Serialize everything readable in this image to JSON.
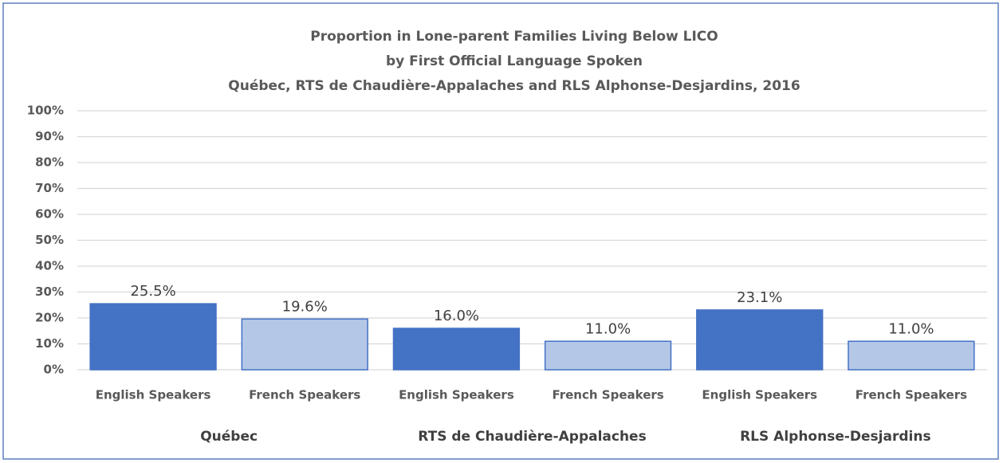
{
  "chart_data": {
    "type": "bar",
    "title": [
      "Proportion in Lone-parent Families Living Below LICO",
      "by First Official Language Spoken",
      "Québec, RTS de Chaudière-Appalaches and RLS Alphonse-Desjardins, 2016"
    ],
    "categories": [
      "English Speakers",
      "French Speakers",
      "English Speakers",
      "French Speakers",
      "English Speakers",
      "French Speakers"
    ],
    "groups": [
      "Québec",
      "RTS de Chaudière-Appalaches",
      "RLS Alphonse-Desjardins"
    ],
    "values": [
      25.5,
      19.6,
      16.0,
      11.0,
      23.1,
      11.0
    ],
    "value_labels": [
      "25.5%",
      "19.6%",
      "16.0%",
      "11.0%",
      "23.1%",
      "11.0%"
    ],
    "colors": [
      "#4472c4",
      "#b4c7e7",
      "#4472c4",
      "#b4c7e7",
      "#4472c4",
      "#b4c7e7"
    ],
    "ylim": [
      0,
      100
    ],
    "yticks": [
      {
        "value": 0,
        "label": "0%"
      },
      {
        "value": 10,
        "label": "10%"
      },
      {
        "value": 20,
        "label": "20%"
      },
      {
        "value": 30,
        "label": "30%"
      },
      {
        "value": 40,
        "label": "40%"
      },
      {
        "value": 50,
        "label": "50%"
      },
      {
        "value": 60,
        "label": "60%"
      },
      {
        "value": 70,
        "label": "70%"
      },
      {
        "value": 80,
        "label": "80%"
      },
      {
        "value": 90,
        "label": "90%"
      },
      {
        "value": 100,
        "label": "100%"
      }
    ],
    "grid": true
  }
}
